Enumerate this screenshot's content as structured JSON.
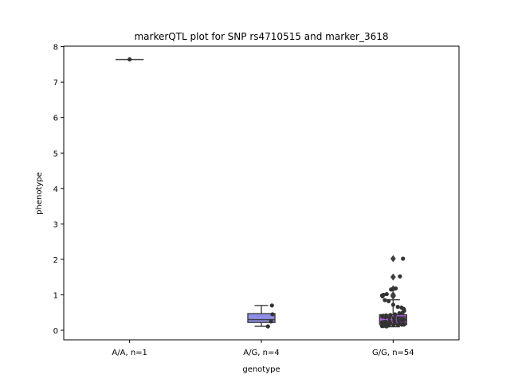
{
  "chart_data": {
    "type": "box",
    "title": "markerQTL plot for SNP rs4710515 and marker_3618",
    "xlabel": "genotype",
    "ylabel": "phenotype",
    "ylim": [
      -0.25,
      8
    ],
    "yticks": [
      0,
      1,
      2,
      3,
      4,
      5,
      6,
      7,
      8
    ],
    "grid": false,
    "categories": [
      "A/A, n=1",
      "A/G, n=4",
      "G/G, n=54"
    ],
    "boxes": [
      {
        "category": "A/A, n=1",
        "color": "#dedede",
        "q1": 7.64,
        "median": 7.64,
        "q3": 7.64,
        "whisker_low": 7.64,
        "whisker_high": 7.64,
        "outliers": [],
        "points": [
          7.64
        ]
      },
      {
        "category": "A/G, n=4",
        "color": "#8e8ee8",
        "q1": 0.22,
        "median": 0.3,
        "q3": 0.47,
        "whisker_low": 0.11,
        "whisker_high": 0.7,
        "outliers": [],
        "points": [
          0.7,
          0.45,
          0.25,
          0.11
        ]
      },
      {
        "category": "G/G, n=54",
        "color": "#b259e8",
        "q1": 0.16,
        "median": 0.38,
        "q3": 0.44,
        "whisker_low": 0.1,
        "whisker_high": 0.86,
        "outliers": [
          2.02,
          1.5,
          1.17,
          1.0,
          0.97,
          0.96
        ],
        "points": [
          2.02,
          1.52,
          1.18,
          1.15,
          1.02,
          1.0,
          0.98,
          0.96,
          0.85,
          0.82,
          0.72,
          0.66,
          0.64,
          0.6,
          0.55,
          0.5,
          0.48,
          0.45,
          0.43,
          0.42,
          0.41,
          0.4,
          0.38,
          0.37,
          0.35,
          0.34,
          0.33,
          0.32,
          0.3,
          0.29,
          0.28,
          0.27,
          0.26,
          0.25,
          0.24,
          0.23,
          0.22,
          0.21,
          0.2,
          0.2,
          0.19,
          0.18,
          0.18,
          0.17,
          0.16,
          0.16,
          0.15,
          0.15,
          0.14,
          0.14,
          0.13,
          0.12,
          0.12,
          0.11
        ]
      }
    ]
  }
}
